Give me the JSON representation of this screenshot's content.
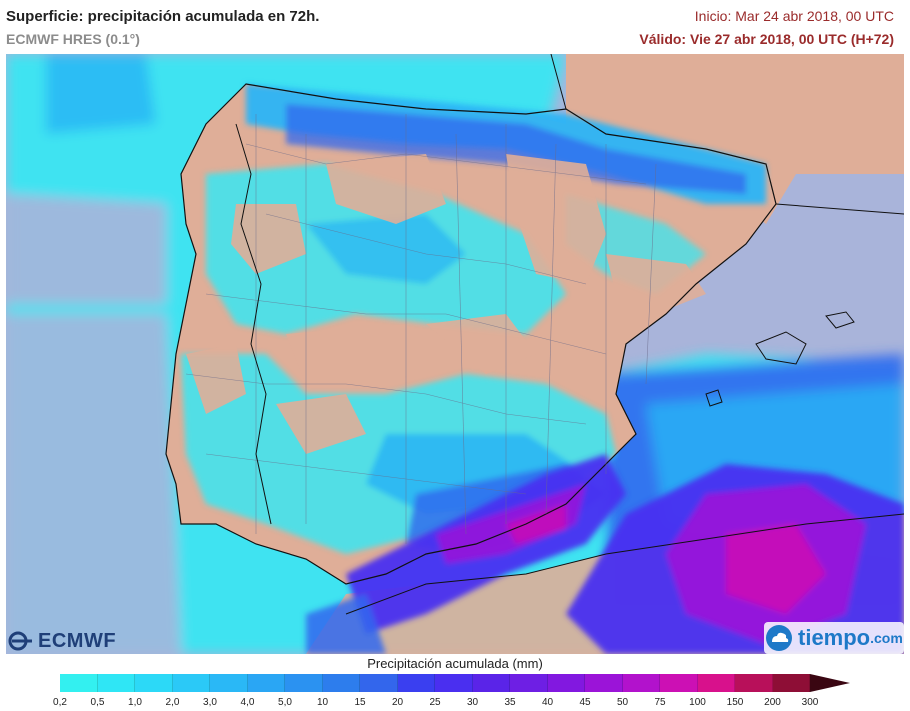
{
  "header": {
    "title": "Superficie: precipitación acumulada en 72h.",
    "model": "ECMWF HRES (0.1°)",
    "init": "Inicio: Mar 24 abr 2018, 00 UTC",
    "valid": "Válido: Vie 27 abr 2018, 00 UTC (H+72)"
  },
  "logos": {
    "ecmwf": "ECMWF",
    "tiempo": "tiempo",
    "tiempo_domain": ".com"
  },
  "legend": {
    "title": "Precipitación acumulada (mm)",
    "labels": [
      "0,2",
      "0,5",
      "1,0",
      "2,0",
      "3,0",
      "4,0",
      "5,0",
      "10",
      "15",
      "20",
      "25",
      "30",
      "35",
      "40",
      "45",
      "50",
      "75",
      "100",
      "150",
      "200",
      "300"
    ],
    "colors": [
      "#33f0f0",
      "#2fe6f5",
      "#2cd9f7",
      "#2bc9f7",
      "#2ab8f6",
      "#2aa6f4",
      "#2b92f1",
      "#2d7ded",
      "#3366ec",
      "#3a3ff0",
      "#4a2ff0",
      "#5a24e8",
      "#6e1fe4",
      "#8218e0",
      "#9b14d8",
      "#b212cc",
      "#cc10b4",
      "#d8118c",
      "#b8105a",
      "#8e0e36",
      "#5e0a1e"
    ],
    "arrow_color": "#3a0612"
  },
  "map_colors": {
    "sea": "#a9b4da",
    "land_dry": "#dfae98",
    "rain_light": "#38e6f2",
    "rain_medium": "#2ab4f5",
    "rain_heavy": "#3168ee",
    "rain_intense": "#4a2ff0",
    "rain_extreme": "#b212cc"
  },
  "map_icons": [
    "borders-overlay",
    "coastline"
  ]
}
